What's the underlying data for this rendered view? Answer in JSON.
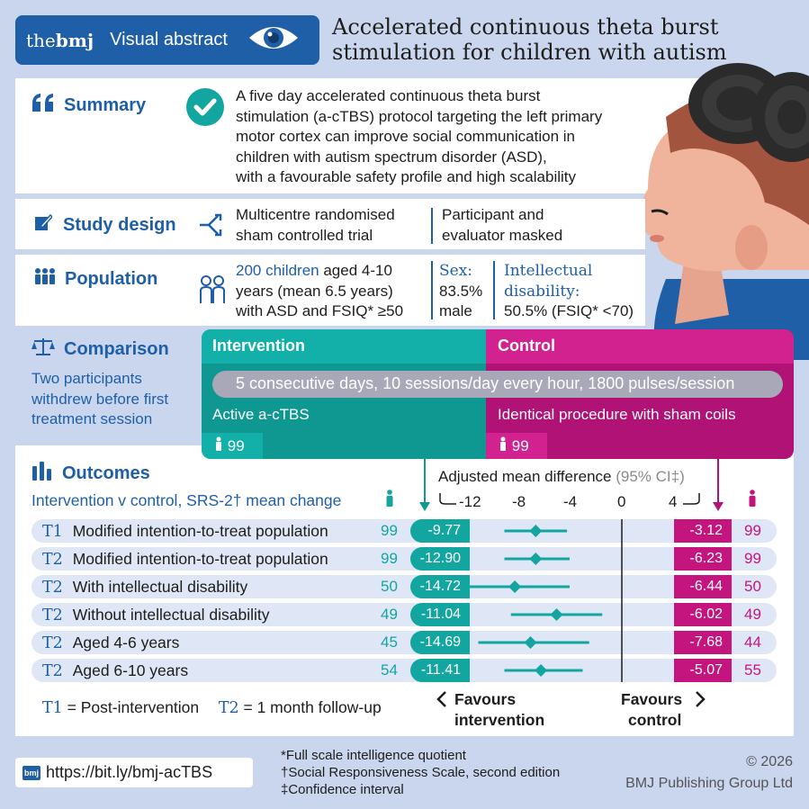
{
  "header": {
    "brand_the": "the",
    "brand_bmj": "bmj",
    "brand_label": "Visual abstract",
    "title_line1": "Accelerated continuous theta burst",
    "title_line2": "stimulation for children with autism"
  },
  "summary": {
    "heading": "Summary",
    "lines": [
      "A five day accelerated continuous theta burst",
      "stimulation (a-cTBS) protocol targeting the left primary",
      "motor cortex can improve social communication in",
      "children with autism spectrum disorder (ASD),",
      "with a favourable safety profile and high scalability"
    ]
  },
  "study_design": {
    "heading": "Study design",
    "left_line1": "Multicentre randomised",
    "left_line2": "sham controlled trial",
    "right_line1": "Participant and",
    "right_line2": "evaluator masked"
  },
  "population": {
    "heading": "Population",
    "highlight": "200 children",
    "line1_rest": " aged 4-10",
    "line2": "years (mean 6.5 years)",
    "line3": "with ASD and FSIQ* ≥50",
    "sex_label": "Sex:",
    "sex_value1": "83.5%",
    "sex_value2": "male",
    "id_label1": "Intellectual",
    "id_label2": "disability:",
    "id_value": "50.5% (FSIQ* <70)"
  },
  "comparison": {
    "heading": "Comparison",
    "note_lines": [
      "Two participants",
      "withdrew before first",
      "treatment session"
    ],
    "intervention_label": "Intervention",
    "control_label": "Control",
    "protocol": "5 consecutive days, 10 sessions/day every hour, 1800 pulses/session",
    "intervention_desc": "Active a-cTBS",
    "control_desc": "Identical procedure with sham coils",
    "intervention_n": "99",
    "control_n": "99"
  },
  "outcomes": {
    "heading": "Outcomes",
    "subheading": "Intervention v control, SRS-2† mean change",
    "axis_title": "Adjusted mean difference",
    "axis_ci": "(95% CI‡)",
    "ticks": [
      "-12",
      "-8",
      "-4",
      "0",
      "4"
    ],
    "rows": [
      {
        "tp": "T1",
        "label": "Modified intention-to-treat population",
        "n_int": "99",
        "int_val": "-9.77",
        "ctrl_val": "-3.12",
        "n_ctrl": "99"
      },
      {
        "tp": "T2",
        "label": "Modified intention-to-treat population",
        "n_int": "99",
        "int_val": "-12.90",
        "ctrl_val": "-6.23",
        "n_ctrl": "99"
      },
      {
        "tp": "T2",
        "label": "With intellectual disability",
        "n_int": "50",
        "int_val": "-14.72",
        "ctrl_val": "-6.44",
        "n_ctrl": "50"
      },
      {
        "tp": "T2",
        "label": "Without intellectual disability",
        "n_int": "49",
        "int_val": "-11.04",
        "ctrl_val": "-6.02",
        "n_ctrl": "49"
      },
      {
        "tp": "T2",
        "label": "Aged 4-6 years",
        "n_int": "45",
        "int_val": "-14.69",
        "ctrl_val": "-7.68",
        "n_ctrl": "44"
      },
      {
        "tp": "T2",
        "label": "Aged 6-10 years",
        "n_int": "54",
        "int_val": "-11.41",
        "ctrl_val": "-5.07",
        "n_ctrl": "55"
      }
    ],
    "forest": [
      {
        "est": -6.6,
        "lo": -9.0,
        "hi": -4.2
      },
      {
        "est": -6.6,
        "lo": -9.0,
        "hi": -4.0
      },
      {
        "est": -8.2,
        "lo": -12.5,
        "hi": -4.0
      },
      {
        "est": -5.0,
        "lo": -8.5,
        "hi": -1.5
      },
      {
        "est": -7.0,
        "lo": -11.0,
        "hi": -2.5
      },
      {
        "est": -6.2,
        "lo": -9.0,
        "hi": -3.0
      }
    ],
    "legend_t1_key": "T1",
    "legend_t1_val": " = Post-intervention",
    "legend_t2_key": "T2",
    "legend_t2_val": " = 1 month follow-up",
    "favours_int_1": "Favours",
    "favours_int_2": "intervention",
    "favours_ctrl_1": "Favours",
    "favours_ctrl_2": "control"
  },
  "footer": {
    "badge": "bmj",
    "url": "https://bit.ly/bmj-acTBS",
    "note1": "*Full scale intelligence quotient",
    "note2": "†Social Responsiveness Scale, second edition",
    "note3": "‡Confidence interval",
    "copyright1": "© 2026",
    "copyright2": "BMJ Publishing Group Ltd"
  },
  "colors": {
    "bmj_blue": "#1f5fa7",
    "teal": "#13a5a0",
    "magenta": "#c4157f",
    "background": "#c9d6ee"
  },
  "icons": [
    "eye-icon",
    "quote-icon",
    "checkmark-icon",
    "pencil-icon",
    "branch-icon",
    "people-icon",
    "two-people-icon",
    "scales-icon",
    "bar-chart-icon",
    "person-icon",
    "arrow-down-icon",
    "chevron-left-icon",
    "chevron-right-icon"
  ]
}
